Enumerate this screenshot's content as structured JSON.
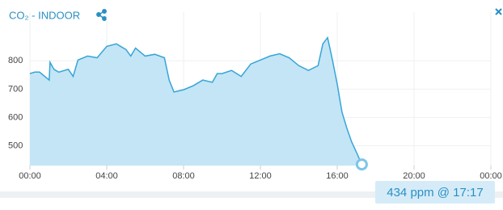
{
  "chart_data": {
    "type": "area",
    "title": "CO₂ -  INDOOR",
    "tooltip": "434 ppm @ 17:17",
    "x": [
      0,
      0.25,
      0.5,
      1.0,
      1.05,
      1.25,
      1.5,
      2,
      2.25,
      2.5,
      3,
      3.5,
      4,
      4.5,
      5,
      5.25,
      5.5,
      6,
      6.5,
      7,
      7.25,
      7.5,
      8,
      8.5,
      9,
      9.5,
      9.75,
      10,
      10.5,
      11,
      11.5,
      12,
      12.5,
      13,
      13.5,
      14,
      14.5,
      15,
      15.25,
      15.5,
      15.75,
      16,
      16.25,
      16.5,
      16.75,
      17,
      17.28
    ],
    "series": [
      {
        "name": "CO2",
        "color": "#36a5d6",
        "fill": "#c3e5f6",
        "values": [
          755,
          760,
          760,
          732,
          795,
          770,
          760,
          770,
          745,
          803,
          817,
          811,
          851,
          860,
          840,
          817,
          845,
          817,
          823,
          811,
          732,
          690,
          698,
          712,
          732,
          724,
          755,
          755,
          766,
          745,
          789,
          803,
          817,
          825,
          811,
          783,
          766,
          783,
          860,
          882,
          803,
          718,
          619,
          562,
          514,
          477,
          434
        ]
      }
    ],
    "xlim": [
      0,
      24
    ],
    "ylim": [
      430,
      915
    ],
    "xticks": [
      {
        "value": 0,
        "label": "00:00"
      },
      {
        "value": 4,
        "label": "04:00"
      },
      {
        "value": 8,
        "label": "08:00"
      },
      {
        "value": 12,
        "label": "12:00"
      },
      {
        "value": 16,
        "label": "16:00"
      },
      {
        "value": 20,
        "label": "20:00"
      },
      {
        "value": 24,
        "label": "00:00"
      }
    ],
    "yticks": [
      500,
      600,
      700,
      800
    ],
    "grid": true
  }
}
